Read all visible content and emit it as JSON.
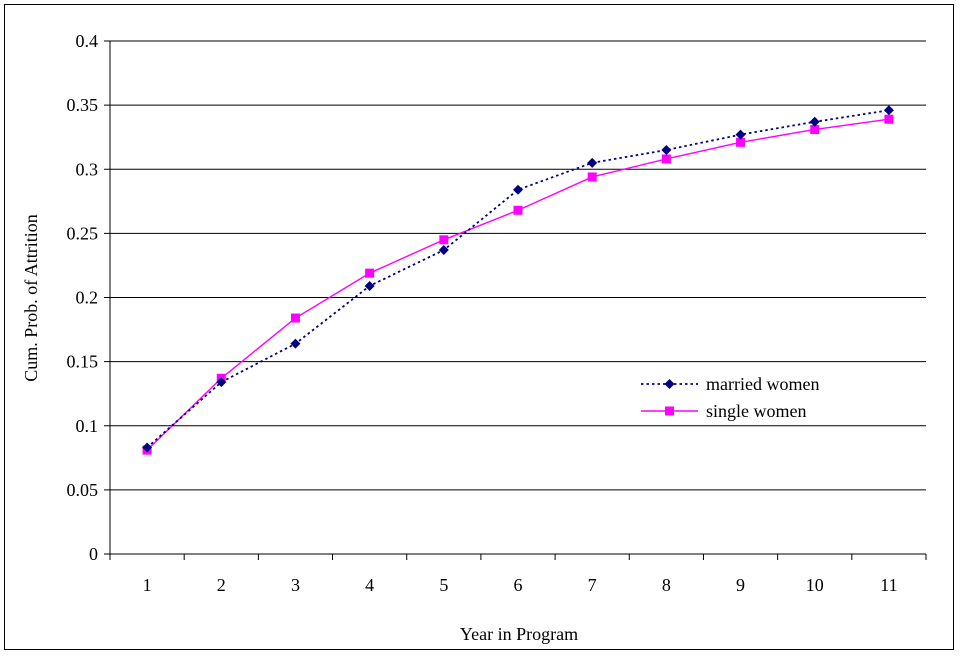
{
  "chart_data": {
    "type": "line",
    "xlabel": "Year in Program",
    "ylabel": "Cum. Prob. of Attrition",
    "x": [
      1,
      2,
      3,
      4,
      5,
      6,
      7,
      8,
      9,
      10,
      11
    ],
    "ylim": [
      0,
      0.4
    ],
    "yticks": [
      "0",
      "0.05",
      "0.1",
      "0.15",
      "0.2",
      "0.25",
      "0.3",
      "0.35",
      "0.4"
    ],
    "grid": "horizontal",
    "legend_position": "right",
    "series": [
      {
        "name": "married women",
        "color": "#000080",
        "line_style": "dotted",
        "marker": "diamond",
        "values": [
          0.083,
          0.134,
          0.164,
          0.209,
          0.237,
          0.284,
          0.305,
          0.315,
          0.327,
          0.337,
          0.346
        ]
      },
      {
        "name": "single women",
        "color": "#ff00ff",
        "line_style": "solid",
        "marker": "square",
        "values": [
          0.081,
          0.137,
          0.184,
          0.219,
          0.245,
          0.268,
          0.294,
          0.308,
          0.321,
          0.331,
          0.339
        ]
      }
    ]
  }
}
